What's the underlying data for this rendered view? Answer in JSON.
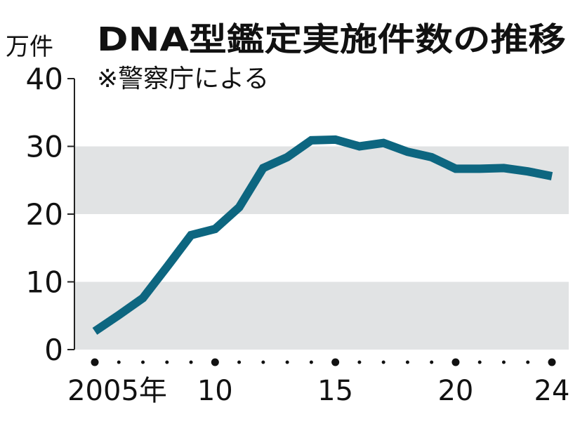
{
  "chart_data": {
    "type": "line",
    "title": "DNA型鑑定実施件数の推移",
    "subtitle": "※警察庁による",
    "ylabel": "万件",
    "xlabel": "",
    "ylim": [
      0,
      40
    ],
    "yticks": [
      "0",
      "10",
      "20",
      "30",
      "40"
    ],
    "xlim": [
      2005,
      2024
    ],
    "xtick_labels": [
      {
        "year": 2005,
        "label": "2005年"
      },
      {
        "year": 2010,
        "label": "10"
      },
      {
        "year": 2015,
        "label": "15"
      },
      {
        "year": 2020,
        "label": "20"
      },
      {
        "year": 2024,
        "label": "24"
      }
    ],
    "shaded_bands": [
      [
        0,
        10
      ],
      [
        20,
        30
      ]
    ],
    "line_color": "#0d6680",
    "band_color": "#e1e3e4",
    "x": [
      2005,
      2006,
      2007,
      2008,
      2009,
      2010,
      2011,
      2012,
      2013,
      2014,
      2015,
      2016,
      2017,
      2018,
      2019,
      2020,
      2021,
      2022,
      2023,
      2024
    ],
    "values": [
      2.7,
      5.1,
      7.6,
      12.2,
      16.9,
      17.8,
      21.0,
      26.8,
      28.4,
      30.9,
      31.0,
      30.0,
      30.5,
      29.2,
      28.4,
      26.7,
      26.7,
      26.8,
      26.3,
      25.6
    ]
  }
}
